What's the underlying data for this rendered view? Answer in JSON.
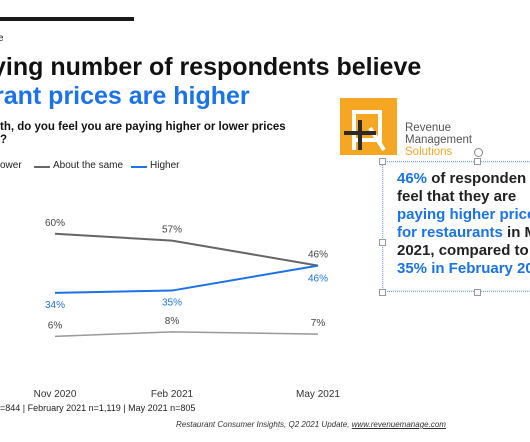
{
  "eyebrow": "e",
  "title_line1": "ying number of respondents believe",
  "title_line2": "rant prices are higher",
  "question_line1": "th, do you feel you are paying higher or lower prices",
  "question_line2": "?",
  "legend": {
    "lower": "ower",
    "same": "About the same",
    "higher": "Higher"
  },
  "logo": {
    "line1": "Revenue",
    "line2": "Management",
    "line3": "Solutions"
  },
  "callout": {
    "p1": "46%",
    "p2": " of responden",
    "p3": "feel that they are",
    "p4": "paying higher price",
    "p5": "for restaurants",
    "p6": " in M",
    "p7": "2021, compared to",
    "p8": "35% in February 20"
  },
  "footnote": "=844  |  February 2021 n=1,119  |  May 2021 n=805",
  "source_prefix": "Restaurant Consumer Insights, Q2 2021 Update, ",
  "source_link": "www.revenuemanage.com",
  "colors": {
    "same": "#666666",
    "higher": "#1a73e8",
    "lower": "#999999",
    "accent": "#f5a623"
  },
  "chart_data": {
    "type": "line",
    "categories": [
      "Nov 2020",
      "Feb 2021",
      "May 2021"
    ],
    "series": [
      {
        "name": "About the same",
        "values": [
          60,
          57,
          46
        ],
        "labels": [
          "60%",
          "57%",
          "46%"
        ]
      },
      {
        "name": "Higher",
        "values": [
          34,
          35,
          46
        ],
        "labels": [
          "34%",
          "35%",
          "46%"
        ]
      },
      {
        "name": "ower",
        "values": [
          6,
          8,
          7
        ],
        "labels": [
          "6%",
          "8%",
          "7%"
        ]
      }
    ]
  }
}
